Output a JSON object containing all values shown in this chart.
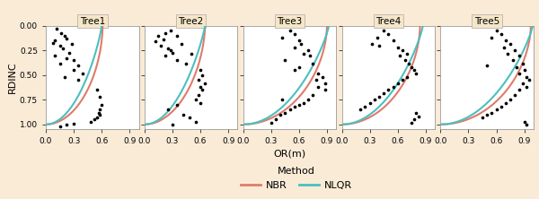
{
  "trees": [
    "Tree1",
    "Tree2",
    "Tree3",
    "Tree4",
    "Tree5"
  ],
  "background_color": "#faebd7",
  "panel_bg": "#ffffff",
  "nbr_color": "#E07B6A",
  "nlqr_color": "#4BBFBF",
  "scatter_color": "black",
  "xlim": [
    0,
    1.0
  ],
  "ylim": [
    0,
    1.05
  ],
  "xticks": [
    0.0,
    0.3,
    0.6,
    0.9
  ],
  "yticks": [
    0.0,
    0.25,
    0.5,
    0.75,
    1.0
  ],
  "xlabel": "OR(m)",
  "ylabel": "RDINC",
  "title_bg": "#f5e6c8",
  "title_border": "#aaaaaa",
  "scatter": {
    "Tree1": {
      "x": [
        0.12,
        0.16,
        0.2,
        0.22,
        0.1,
        0.08,
        0.15,
        0.28,
        0.18,
        0.25,
        0.1,
        0.22,
        0.3,
        0.15,
        0.35,
        0.3,
        0.4,
        0.2,
        0.35,
        0.55,
        0.58,
        0.6,
        0.58,
        0.57,
        0.58,
        0.55,
        0.52,
        0.48,
        0.3,
        0.22,
        0.15
      ],
      "y": [
        0.03,
        0.07,
        0.1,
        0.13,
        0.15,
        0.17,
        0.2,
        0.18,
        0.23,
        0.27,
        0.3,
        0.33,
        0.35,
        0.38,
        0.4,
        0.45,
        0.48,
        0.52,
        0.55,
        0.65,
        0.72,
        0.8,
        0.85,
        0.88,
        0.9,
        0.93,
        0.95,
        0.97,
        0.99,
        1.0,
        1.02
      ]
    },
    "Tree2": {
      "x": [
        0.28,
        0.22,
        0.15,
        0.2,
        0.35,
        0.12,
        0.18,
        0.4,
        0.25,
        0.3,
        0.22,
        0.5,
        0.35,
        0.45,
        0.6,
        0.62,
        0.58,
        0.65,
        0.6,
        0.62,
        0.58,
        0.55,
        0.6,
        0.35,
        0.25,
        0.42,
        0.48,
        0.55,
        0.3,
        0.28
      ],
      "y": [
        0.05,
        0.07,
        0.1,
        0.14,
        0.1,
        0.16,
        0.2,
        0.18,
        0.23,
        0.27,
        0.3,
        0.28,
        0.35,
        0.38,
        0.45,
        0.5,
        0.55,
        0.58,
        0.62,
        0.65,
        0.7,
        0.75,
        0.78,
        0.8,
        0.85,
        0.9,
        0.93,
        0.97,
        1.0,
        0.25
      ]
    },
    "Tree3": {
      "x": [
        0.5,
        0.55,
        0.42,
        0.6,
        0.62,
        0.55,
        0.7,
        0.65,
        0.72,
        0.45,
        0.75,
        0.6,
        0.55,
        0.8,
        0.85,
        0.78,
        0.88,
        0.8,
        0.88,
        0.75,
        0.7,
        0.65,
        0.6,
        0.55,
        0.5,
        0.45,
        0.4,
        0.35,
        0.42,
        0.3
      ],
      "y": [
        0.05,
        0.08,
        0.12,
        0.15,
        0.18,
        0.22,
        0.25,
        0.28,
        0.3,
        0.35,
        0.38,
        0.42,
        0.45,
        0.48,
        0.52,
        0.55,
        0.58,
        0.62,
        0.65,
        0.7,
        0.75,
        0.78,
        0.8,
        0.82,
        0.85,
        0.88,
        0.9,
        0.95,
        0.75,
        0.98
      ]
    },
    "Tree4": {
      "x": [
        0.45,
        0.5,
        0.38,
        0.55,
        0.32,
        0.6,
        0.65,
        0.7,
        0.62,
        0.68,
        0.72,
        0.75,
        0.78,
        0.8,
        0.7,
        0.65,
        0.6,
        0.55,
        0.5,
        0.45,
        0.4,
        0.35,
        0.3,
        0.25,
        0.8,
        0.82,
        0.78,
        0.75,
        0.4,
        0.2
      ],
      "y": [
        0.05,
        0.08,
        0.12,
        0.15,
        0.18,
        0.22,
        0.25,
        0.28,
        0.3,
        0.35,
        0.38,
        0.42,
        0.45,
        0.48,
        0.52,
        0.55,
        0.58,
        0.62,
        0.65,
        0.68,
        0.72,
        0.75,
        0.78,
        0.82,
        0.88,
        0.92,
        0.95,
        0.98,
        0.2,
        0.85
      ]
    },
    "Tree5": {
      "x": [
        0.6,
        0.65,
        0.55,
        0.7,
        0.75,
        0.68,
        0.8,
        0.72,
        0.85,
        0.78,
        0.88,
        0.82,
        0.9,
        0.85,
        0.92,
        0.95,
        0.88,
        0.92,
        0.85,
        0.8,
        0.75,
        0.7,
        0.65,
        0.6,
        0.55,
        0.5,
        0.45,
        0.9,
        0.92,
        0.5
      ],
      "y": [
        0.05,
        0.08,
        0.12,
        0.15,
        0.18,
        0.22,
        0.25,
        0.28,
        0.3,
        0.35,
        0.38,
        0.42,
        0.45,
        0.48,
        0.52,
        0.55,
        0.58,
        0.62,
        0.65,
        0.7,
        0.75,
        0.78,
        0.82,
        0.85,
        0.88,
        0.9,
        0.93,
        0.97,
        1.0,
        0.4
      ]
    }
  },
  "nbr_params": {
    "Tree1": {
      "a": 0.61,
      "b": 1.8
    },
    "Tree2": {
      "a": 0.65,
      "b": 1.7
    },
    "Tree3": {
      "a": 0.9,
      "b": 1.8
    },
    "Tree4": {
      "a": 0.84,
      "b": 1.8
    },
    "Tree5": {
      "a": 0.97,
      "b": 1.8
    }
  },
  "nlqr_params": {
    "Tree1": {
      "a": 0.6,
      "b": 1.2
    },
    "Tree2": {
      "a": 0.65,
      "b": 1.15
    },
    "Tree3": {
      "a": 0.92,
      "b": 1.2
    },
    "Tree4": {
      "a": 0.87,
      "b": 1.2
    },
    "Tree5": {
      "a": 0.99,
      "b": 1.2
    }
  }
}
